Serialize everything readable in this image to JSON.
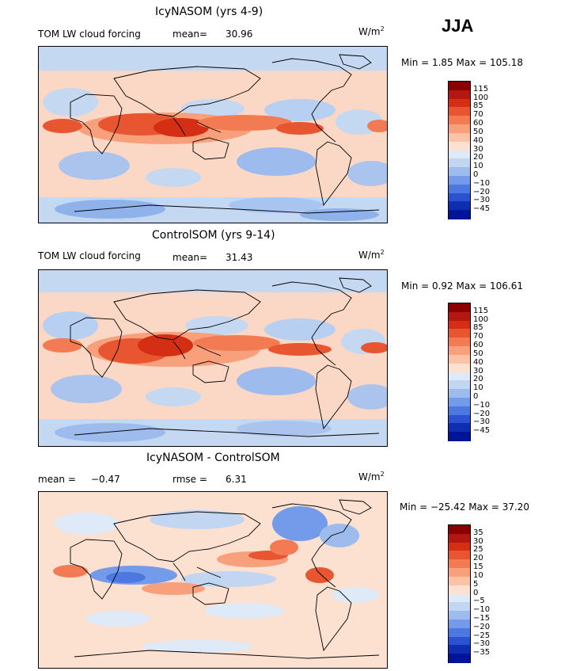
{
  "season": "JJA",
  "panels": [
    {
      "title": "IcyNASOM (yrs 4-9)",
      "left_label": "TOM LW cloud forcing",
      "stat_label": "mean=",
      "stat_value": "30.96",
      "units": "W/m",
      "units_exp": "2",
      "minmax": "Min =    1.85 Max = 105.18",
      "levels": [
        "115",
        "100",
        "85",
        "70",
        "60",
        "50",
        "40",
        "30",
        "20",
        "10",
        "0",
        "−10",
        "−20",
        "−30",
        "−45"
      ],
      "colors": [
        "#8b0000",
        "#b2180f",
        "#d42f14",
        "#e85531",
        "#f27b54",
        "#f7a07b",
        "#fbc3a6",
        "#fce0d0",
        "#dfeaf8",
        "#c2d6f2",
        "#9dbbed",
        "#739bea",
        "#4e78e1",
        "#2b53d1",
        "#0d2eb0",
        "#00149a"
      ]
    },
    {
      "title": "ControlSOM (yrs 9-14)",
      "left_label": "TOM LW cloud forcing",
      "stat_label": "mean=",
      "stat_value": "31.43",
      "units": "W/m",
      "units_exp": "2",
      "minmax": "Min =    0.92 Max = 106.61",
      "levels": [
        "115",
        "100",
        "85",
        "70",
        "60",
        "50",
        "40",
        "30",
        "20",
        "10",
        "0",
        "−10",
        "−20",
        "−30",
        "−45"
      ],
      "colors": [
        "#8b0000",
        "#b2180f",
        "#d42f14",
        "#e85531",
        "#f27b54",
        "#f7a07b",
        "#fbc3a6",
        "#fce0d0",
        "#dfeaf8",
        "#c2d6f2",
        "#9dbbed",
        "#739bea",
        "#4e78e1",
        "#2b53d1",
        "#0d2eb0",
        "#00149a"
      ]
    },
    {
      "title": "IcyNASOM - ControlSOM",
      "mean_label": "mean =",
      "mean_value": "−0.47",
      "rmse_label": "rmse =",
      "rmse_value": "6.31",
      "units": "W/m",
      "units_exp": "2",
      "minmax": "Min = −25.42 Max =  37.20",
      "levels": [
        "35",
        "30",
        "25",
        "20",
        "15",
        "10",
        "5",
        "0",
        "−5",
        "−10",
        "−15",
        "−20",
        "−25",
        "−30",
        "−35"
      ],
      "colors": [
        "#8b0000",
        "#b2180f",
        "#d42f14",
        "#e85531",
        "#f27b54",
        "#f7a07b",
        "#fbc3a6",
        "#fce0d0",
        "#dfeaf8",
        "#c2d6f2",
        "#9dbbed",
        "#739bea",
        "#4e78e1",
        "#2b53d1",
        "#0d2eb0",
        "#00149a"
      ]
    }
  ]
}
